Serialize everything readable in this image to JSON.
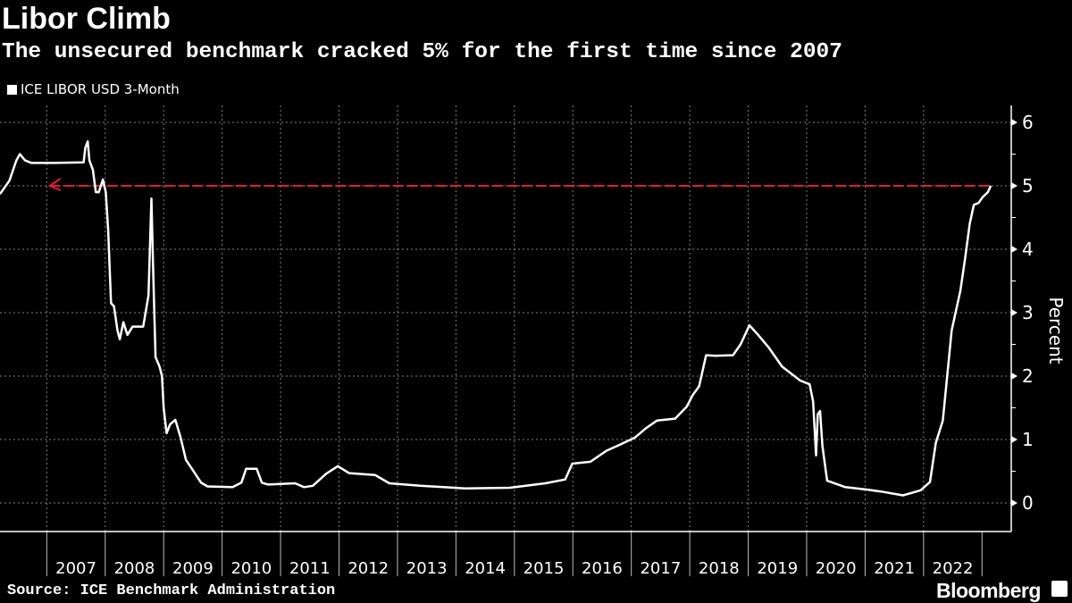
{
  "title": "Libor Climb",
  "subtitle": "The unsecured benchmark cracked 5% for the first time since 2007",
  "legend": "ICE LIBOR USD 3-Month",
  "source": "Source: ICE Benchmark Administration",
  "brand": "Bloomberg",
  "colors": {
    "line": "#ffffff",
    "reference": "#e8173a",
    "grid": "#808080",
    "background": "#000000"
  },
  "chart_data": {
    "type": "line",
    "title": "Libor Climb",
    "ylabel": "Percent",
    "xlabel": "",
    "xlim": [
      2006.2,
      2023.5
    ],
    "ylim": [
      0,
      6.27
    ],
    "yticks": [
      0,
      1,
      2,
      3,
      4,
      5,
      6
    ],
    "xcategories": [
      "2007",
      "2008",
      "2009",
      "2010",
      "2011",
      "2012",
      "2013",
      "2014",
      "2015",
      "2016",
      "2017",
      "2018",
      "2019",
      "2020",
      "2021",
      "2022"
    ],
    "grid": true,
    "legend_position": "top-left",
    "reference_line": {
      "value": 5,
      "from": 2007.05,
      "to": 2023.15,
      "style": "dashed-arrow"
    },
    "series": [
      {
        "name": "ICE LIBOR USD 3-Month",
        "points": [
          [
            2006.2,
            4.87
          ],
          [
            2006.36,
            5.08
          ],
          [
            2006.48,
            5.4
          ],
          [
            2006.54,
            5.5
          ],
          [
            2006.63,
            5.4
          ],
          [
            2006.74,
            5.36
          ],
          [
            2007.12,
            5.36
          ],
          [
            2007.63,
            5.37
          ],
          [
            2007.66,
            5.6
          ],
          [
            2007.7,
            5.7
          ],
          [
            2007.73,
            5.4
          ],
          [
            2007.79,
            5.25
          ],
          [
            2007.84,
            4.9
          ],
          [
            2007.89,
            4.9
          ],
          [
            2007.96,
            5.1
          ],
          [
            2008.01,
            4.9
          ],
          [
            2008.05,
            4.3
          ],
          [
            2008.1,
            3.15
          ],
          [
            2008.15,
            3.1
          ],
          [
            2008.21,
            2.72
          ],
          [
            2008.25,
            2.58
          ],
          [
            2008.31,
            2.85
          ],
          [
            2008.38,
            2.65
          ],
          [
            2008.47,
            2.78
          ],
          [
            2008.65,
            2.78
          ],
          [
            2008.74,
            3.27
          ],
          [
            2008.79,
            4.8
          ],
          [
            2008.82,
            3.7
          ],
          [
            2008.86,
            2.3
          ],
          [
            2008.93,
            2.15
          ],
          [
            2008.97,
            2.0
          ],
          [
            2009.0,
            1.5
          ],
          [
            2009.05,
            1.1
          ],
          [
            2009.11,
            1.24
          ],
          [
            2009.2,
            1.31
          ],
          [
            2009.29,
            1.03
          ],
          [
            2009.38,
            0.68
          ],
          [
            2009.49,
            0.53
          ],
          [
            2009.64,
            0.32
          ],
          [
            2009.75,
            0.26
          ],
          [
            2010.18,
            0.25
          ],
          [
            2010.33,
            0.32
          ],
          [
            2010.41,
            0.54
          ],
          [
            2010.59,
            0.54
          ],
          [
            2010.68,
            0.32
          ],
          [
            2010.79,
            0.29
          ],
          [
            2011.25,
            0.31
          ],
          [
            2011.4,
            0.25
          ],
          [
            2011.55,
            0.27
          ],
          [
            2011.78,
            0.46
          ],
          [
            2011.98,
            0.58
          ],
          [
            2012.17,
            0.47
          ],
          [
            2012.62,
            0.44
          ],
          [
            2012.86,
            0.31
          ],
          [
            2013.39,
            0.27
          ],
          [
            2014.16,
            0.23
          ],
          [
            2014.92,
            0.24
          ],
          [
            2015.53,
            0.31
          ],
          [
            2015.87,
            0.37
          ],
          [
            2015.99,
            0.62
          ],
          [
            2016.3,
            0.65
          ],
          [
            2016.57,
            0.82
          ],
          [
            2016.83,
            0.93
          ],
          [
            2017.06,
            1.03
          ],
          [
            2017.24,
            1.17
          ],
          [
            2017.44,
            1.3
          ],
          [
            2017.75,
            1.33
          ],
          [
            2017.95,
            1.52
          ],
          [
            2018.05,
            1.7
          ],
          [
            2018.16,
            1.84
          ],
          [
            2018.28,
            2.33
          ],
          [
            2018.44,
            2.32
          ],
          [
            2018.74,
            2.33
          ],
          [
            2018.87,
            2.5
          ],
          [
            2019.02,
            2.8
          ],
          [
            2019.17,
            2.65
          ],
          [
            2019.35,
            2.45
          ],
          [
            2019.58,
            2.15
          ],
          [
            2019.89,
            1.93
          ],
          [
            2020.05,
            1.87
          ],
          [
            2020.11,
            1.6
          ],
          [
            2020.16,
            0.75
          ],
          [
            2020.19,
            1.4
          ],
          [
            2020.23,
            1.45
          ],
          [
            2020.27,
            0.9
          ],
          [
            2020.35,
            0.35
          ],
          [
            2020.66,
            0.25
          ],
          [
            2021.04,
            0.21
          ],
          [
            2021.27,
            0.18
          ],
          [
            2021.65,
            0.12
          ],
          [
            2021.95,
            0.2
          ],
          [
            2022.11,
            0.33
          ],
          [
            2022.21,
            0.95
          ],
          [
            2022.33,
            1.3
          ],
          [
            2022.48,
            2.72
          ],
          [
            2022.63,
            3.35
          ],
          [
            2022.71,
            3.85
          ],
          [
            2022.79,
            4.4
          ],
          [
            2022.86,
            4.7
          ],
          [
            2022.94,
            4.73
          ],
          [
            2023.01,
            4.82
          ],
          [
            2023.1,
            4.9
          ],
          [
            2023.15,
            5.0
          ]
        ]
      }
    ]
  }
}
